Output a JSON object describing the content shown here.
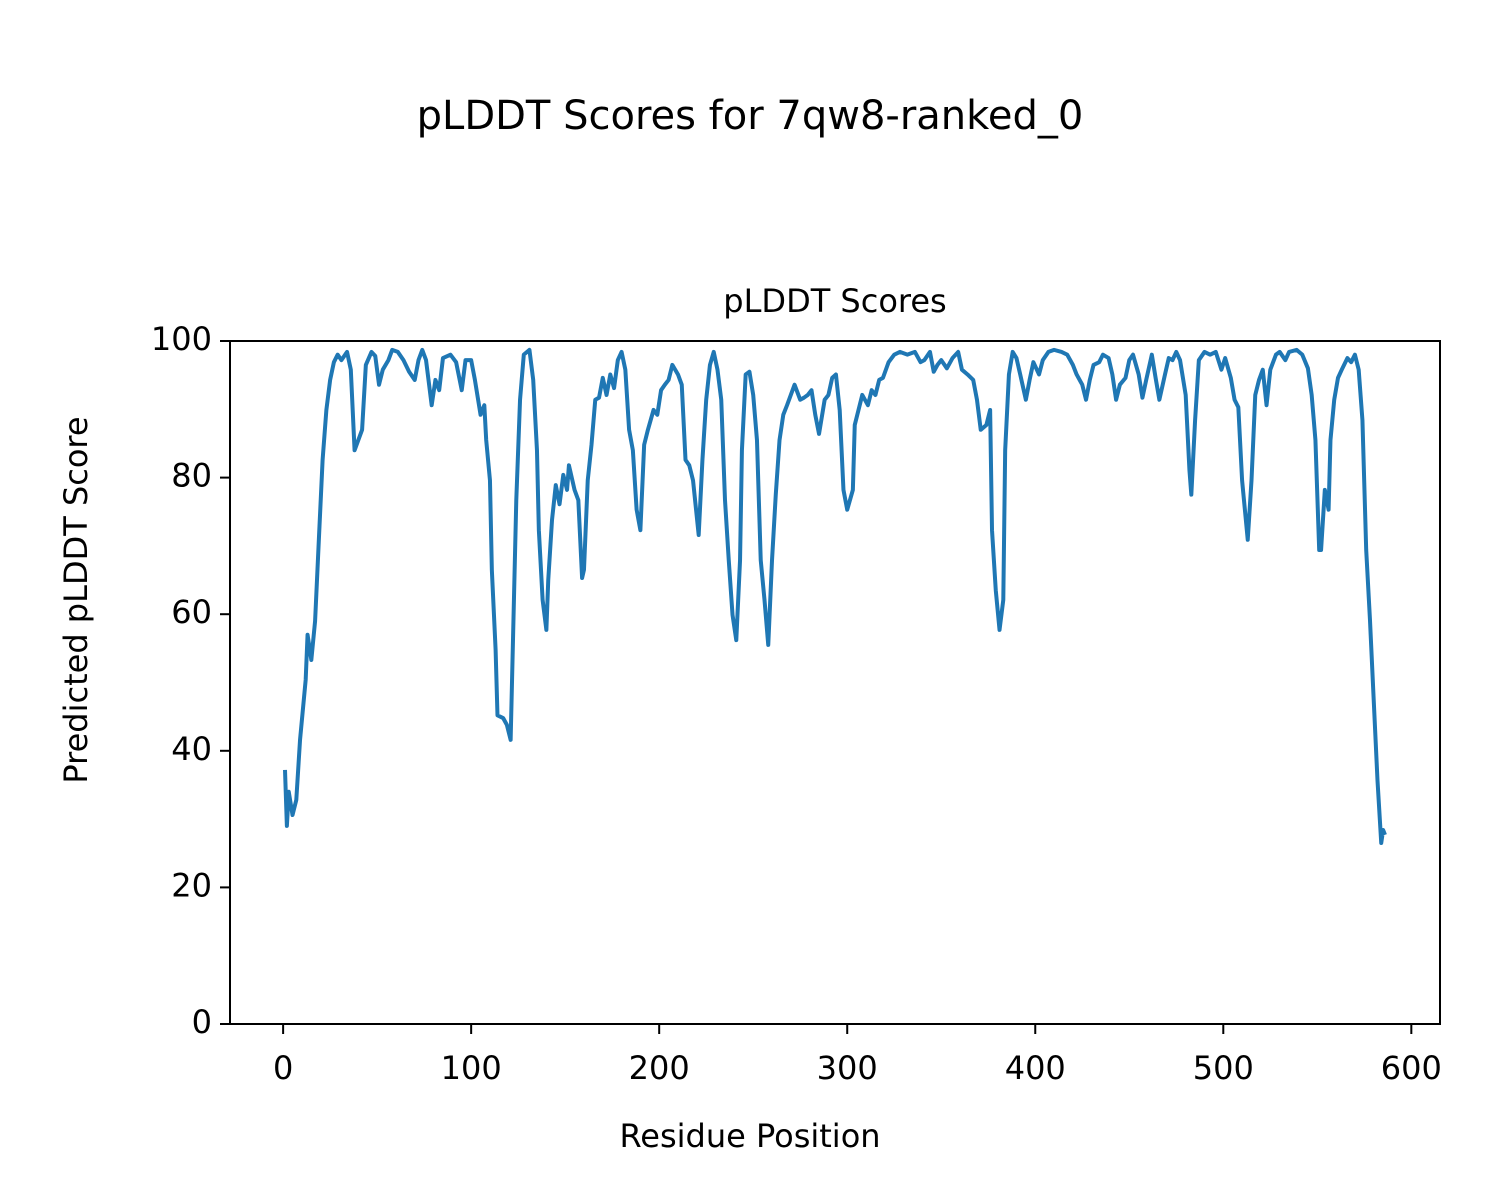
{
  "chart_data": {
    "type": "line",
    "title": "pLDDT Scores for 7qw8-ranked_0",
    "subtitle": "pLDDT Scores",
    "x_label": "Residue Position",
    "y_label": "Predicted pLDDT Score",
    "xlim": [
      -28.25,
      615.25
    ],
    "ylim": [
      0,
      100
    ],
    "xticks": [
      0,
      100,
      200,
      300,
      400,
      500,
      600
    ],
    "yticks": [
      0,
      20,
      40,
      60,
      80,
      100
    ],
    "grid": false,
    "series": [
      {
        "name": "pLDDT",
        "color": "#1f77b4",
        "x": [
          1,
          2,
          3,
          5,
          7,
          9,
          12,
          13,
          15,
          17,
          19,
          21,
          23,
          25,
          27,
          29,
          31,
          34,
          36,
          38,
          40,
          42,
          44,
          47,
          49,
          51,
          53,
          56,
          58,
          61,
          64,
          67,
          70,
          72,
          74,
          76,
          79,
          81,
          83,
          85,
          89,
          92,
          95,
          97,
          100,
          102,
          105,
          107,
          108,
          110,
          111,
          113,
          114,
          117,
          119,
          121,
          122,
          124,
          126,
          128,
          131,
          133,
          135,
          136,
          138,
          140,
          141,
          143,
          145,
          147,
          149,
          151,
          152,
          155,
          157,
          159,
          160,
          162,
          164,
          166,
          168,
          170,
          172,
          174,
          176,
          178,
          180,
          182,
          184,
          186,
          188,
          190,
          192,
          194,
          197,
          199,
          201,
          203,
          205,
          207,
          210,
          212,
          214,
          216,
          218,
          221,
          223,
          225,
          227,
          229,
          231,
          233,
          235,
          237,
          239,
          241,
          243,
          244,
          246,
          248,
          250,
          252,
          254,
          256,
          258,
          260,
          262,
          264,
          266,
          268,
          270,
          272,
          275,
          277,
          279,
          281,
          283,
          285,
          288,
          290,
          292,
          294,
          296,
          298,
          300,
          303,
          304,
          306,
          308,
          311,
          313,
          315,
          317,
          319,
          322,
          325,
          328,
          332,
          336,
          339,
          341,
          344,
          346,
          348,
          350,
          353,
          356,
          359,
          361,
          364,
          367,
          369,
          371,
          374,
          376,
          377,
          379,
          381,
          383,
          384,
          386,
          388,
          390,
          392,
          395,
          397,
          399,
          402,
          404,
          407,
          410,
          414,
          417,
          420,
          422,
          425,
          427,
          429,
          431,
          434,
          436,
          439,
          441,
          443,
          445,
          448,
          450,
          452,
          455,
          457,
          459,
          462,
          464,
          466,
          469,
          471,
          473,
          475,
          477,
          480,
          482,
          483,
          485,
          487,
          490,
          493,
          496,
          499,
          501,
          504,
          506,
          508,
          510,
          511,
          513,
          515,
          517,
          519,
          521,
          523,
          525,
          528,
          530,
          533,
          535,
          539,
          542,
          545,
          547,
          549,
          551,
          552,
          554,
          556,
          557,
          559,
          561,
          563,
          566,
          568,
          570,
          572,
          574,
          576,
          578,
          580,
          582,
          584,
          585,
          586
        ],
        "values": [
          37.2,
          29,
          34,
          30.6,
          32.8,
          41.6,
          50.4,
          57,
          53.3,
          59,
          70.9,
          82.6,
          89.9,
          94.3,
          96.9,
          98,
          97.2,
          98.4,
          95.8,
          84,
          85.5,
          87,
          96.5,
          98.4,
          97.8,
          93.6,
          95.8,
          97.2,
          98.7,
          98.4,
          97.2,
          95.5,
          94.3,
          97.2,
          98.7,
          97.2,
          90.6,
          94.3,
          92.8,
          97.5,
          98,
          96.9,
          92.8,
          97.2,
          97.2,
          94.3,
          89.2,
          90.6,
          85.5,
          79.6,
          66.5,
          54.8,
          45.2,
          44.8,
          43.8,
          41.6,
          53.3,
          76.7,
          91.4,
          98,
          98.7,
          94.3,
          84,
          72.3,
          62.1,
          57.7,
          65,
          73.8,
          78.9,
          76.1,
          80.4,
          78.2,
          81.8,
          78.2,
          76.7,
          65.3,
          66.5,
          79.6,
          84.8,
          91.4,
          91.7,
          94.6,
          92.1,
          95.1,
          93.1,
          97.2,
          98.4,
          95.8,
          87,
          84,
          75.3,
          72.3,
          84.8,
          87,
          89.9,
          89.2,
          92.8,
          93.6,
          94.3,
          96.5,
          95.1,
          93.6,
          82.6,
          81.8,
          79.6,
          71.6,
          82.6,
          91.4,
          96.5,
          98.4,
          95.8,
          91.4,
          76.7,
          67.9,
          59.9,
          56.2,
          67.9,
          84,
          95.1,
          95.5,
          92.1,
          85.5,
          67.9,
          62.1,
          55.5,
          67.9,
          77.5,
          85.5,
          89.2,
          90.6,
          92.1,
          93.6,
          91.4,
          91.7,
          92.1,
          92.8,
          89.2,
          86.4,
          91.4,
          92.1,
          94.6,
          95.1,
          89.9,
          78.2,
          75.3,
          78.2,
          87.7,
          89.9,
          92.1,
          90.6,
          92.8,
          92.1,
          94.3,
          94.6,
          96.9,
          98,
          98.4,
          98,
          98.4,
          96.9,
          97.2,
          98.4,
          95.5,
          96.5,
          97.2,
          96,
          97.5,
          98.4,
          95.8,
          95.1,
          94.3,
          91.4,
          87,
          87.7,
          89.9,
          72.3,
          63.5,
          57.7,
          62.1,
          84,
          95.1,
          98.4,
          97.5,
          95.1,
          91.4,
          94.3,
          96.9,
          95.1,
          97.2,
          98.4,
          98.7,
          98.4,
          98,
          96.5,
          95.1,
          93.6,
          91.4,
          94.3,
          96.5,
          96.9,
          98,
          97.5,
          95.1,
          91.4,
          93.6,
          94.6,
          97.2,
          98,
          95.1,
          91.7,
          94.3,
          98,
          94.6,
          91.4,
          95.1,
          97.5,
          97.2,
          98.4,
          97.2,
          92.1,
          81.1,
          77.5,
          88.4,
          97.2,
          98.4,
          98,
          98.4,
          95.8,
          97.5,
          94.6,
          91.4,
          90.3,
          79.6,
          76.7,
          70.9,
          79.6,
          92.1,
          94.3,
          95.8,
          90.6,
          95.8,
          98,
          98.4,
          97.2,
          98.4,
          98.7,
          98,
          96,
          92.1,
          85.5,
          69.4,
          69.4,
          78.2,
          75.3,
          85.5,
          91.4,
          94.6,
          95.8,
          97.5,
          96.9,
          98,
          95.8,
          88.4,
          69.4,
          59.2,
          47.4,
          35.7,
          26.5,
          28.4,
          27.7
        ]
      }
    ]
  }
}
